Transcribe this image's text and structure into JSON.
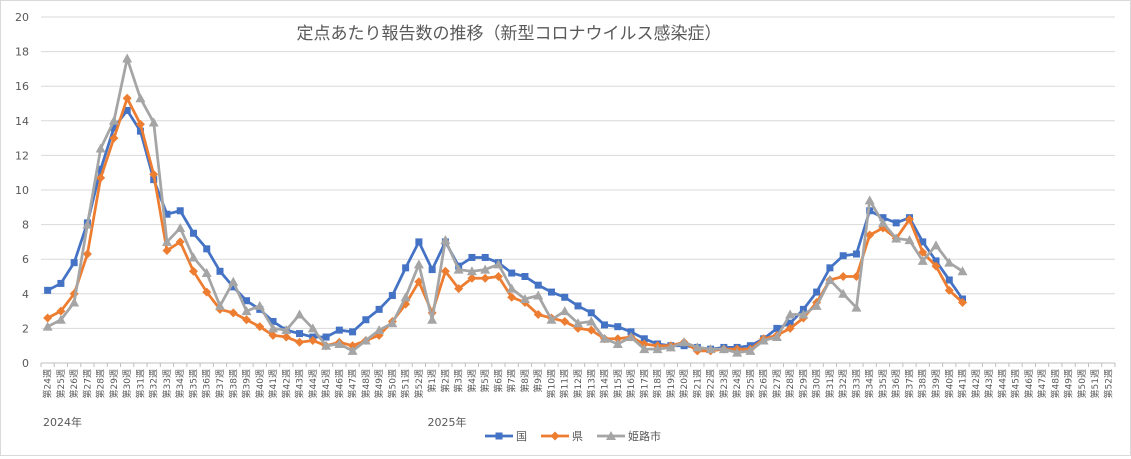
{
  "chart_data": {
    "type": "line",
    "title": "定点あたり報告数の推移（新型コロナウイルス感染症）",
    "xlabel": "",
    "ylabel": "",
    "ylim": [
      0,
      20
    ],
    "yticks": [
      0,
      2,
      4,
      6,
      8,
      10,
      12,
      14,
      16,
      18,
      20
    ],
    "grid": "horizontal",
    "legend_position": "bottom",
    "year_labels": [
      {
        "label": "2024年",
        "category_index": 0
      },
      {
        "label": "2025年",
        "category_index": 29
      }
    ],
    "categories": [
      "第24週",
      "第25週",
      "第26週",
      "第27週",
      "第28週",
      "第29週",
      "第30週",
      "第31週",
      "第32週",
      "第33週",
      "第34週",
      "第35週",
      "第36週",
      "第37週",
      "第38週",
      "第39週",
      "第40週",
      "第41週",
      "第42週",
      "第43週",
      "第44週",
      "第45週",
      "第46週",
      "第47週",
      "第48週",
      "第49週",
      "第50週",
      "第51週",
      "第52週",
      "第1週",
      "第2週",
      "第3週",
      "第4週",
      "第5週",
      "第6週",
      "第7週",
      "第8週",
      "第9週",
      "第10週",
      "第11週",
      "第12週",
      "第13週",
      "第14週",
      "第15週",
      "第16週",
      "第17週",
      "第18週",
      "第19週",
      "第20週",
      "第21週",
      "第22週",
      "第23週",
      "第24週",
      "第25週",
      "第26週",
      "第27週",
      "第28週",
      "第29週",
      "第30週",
      "第31週",
      "第32週",
      "第33週",
      "第34週",
      "第35週",
      "第36週",
      "第37週",
      "第38週",
      "第39週",
      "第40週",
      "第41週",
      "第42週",
      "第43週",
      "第44週",
      "第45週",
      "第46週",
      "第47週",
      "第48週",
      "第49週",
      "第50週",
      "第51週",
      "第52週"
    ],
    "series": [
      {
        "name": "国",
        "color": "#4472c4",
        "marker": "square",
        "values": [
          4.2,
          4.6,
          5.8,
          8.1,
          11.2,
          13.6,
          14.6,
          13.4,
          10.6,
          8.6,
          8.8,
          7.5,
          6.6,
          5.3,
          4.4,
          3.6,
          3.1,
          2.4,
          1.9,
          1.7,
          1.5,
          1.5,
          1.9,
          1.8,
          2.5,
          3.1,
          3.9,
          5.5,
          7.0,
          5.4,
          7.0,
          5.6,
          6.1,
          6.1,
          5.8,
          5.2,
          5.0,
          4.5,
          4.1,
          3.8,
          3.3,
          2.9,
          2.2,
          2.1,
          1.8,
          1.4,
          1.1,
          1.0,
          1.0,
          0.9,
          0.8,
          0.9,
          0.9,
          1.0,
          1.4,
          2.0,
          2.3,
          3.1,
          4.1,
          5.5,
          6.2,
          6.3,
          8.8,
          8.4,
          8.1,
          8.4,
          7.0,
          5.9,
          4.8,
          3.7,
          null,
          null,
          null,
          null,
          null,
          null,
          null,
          null,
          null,
          null,
          null
        ]
      },
      {
        "name": "県",
        "color": "#ed7d31",
        "marker": "diamond",
        "values": [
          2.6,
          3.0,
          4.0,
          6.3,
          10.7,
          13.0,
          15.3,
          13.8,
          10.9,
          6.5,
          7.0,
          5.3,
          4.1,
          3.1,
          2.9,
          2.5,
          2.1,
          1.6,
          1.5,
          1.2,
          1.3,
          1.0,
          1.2,
          1.0,
          1.3,
          1.6,
          2.4,
          3.4,
          4.7,
          2.9,
          5.3,
          4.3,
          4.9,
          4.9,
          5.0,
          3.8,
          3.5,
          2.8,
          2.6,
          2.4,
          2.0,
          1.9,
          1.4,
          1.4,
          1.5,
          1.1,
          1.0,
          1.0,
          1.2,
          0.7,
          0.7,
          0.8,
          0.8,
          0.8,
          1.4,
          1.6,
          2.0,
          2.6,
          3.5,
          4.8,
          5.0,
          5.0,
          7.4,
          7.8,
          7.2,
          8.3,
          6.4,
          5.6,
          4.2,
          3.5,
          null,
          null,
          null,
          null,
          null,
          null,
          null,
          null,
          null,
          null,
          null
        ]
      },
      {
        "name": "姫路市",
        "color": "#a5a5a5",
        "marker": "triangle",
        "values": [
          2.1,
          2.5,
          3.5,
          8.0,
          12.4,
          14.0,
          17.6,
          15.3,
          13.9,
          7.0,
          7.8,
          6.1,
          5.2,
          3.3,
          4.7,
          3.0,
          3.3,
          2.0,
          1.9,
          2.8,
          2.0,
          1.0,
          1.1,
          0.7,
          1.3,
          1.9,
          2.3,
          3.8,
          5.7,
          2.5,
          7.1,
          5.4,
          5.3,
          5.4,
          5.7,
          4.3,
          3.7,
          3.9,
          2.5,
          3.0,
          2.3,
          2.4,
          1.4,
          1.1,
          1.5,
          0.8,
          0.8,
          0.9,
          1.2,
          0.9,
          0.8,
          0.8,
          0.6,
          0.7,
          1.3,
          1.5,
          2.8,
          2.8,
          3.3,
          4.8,
          4.0,
          3.2,
          9.4,
          8.1,
          7.2,
          7.1,
          5.9,
          6.8,
          5.8,
          5.3,
          null,
          null,
          null,
          null,
          null,
          null,
          null,
          null,
          null,
          null,
          null
        ]
      }
    ]
  }
}
